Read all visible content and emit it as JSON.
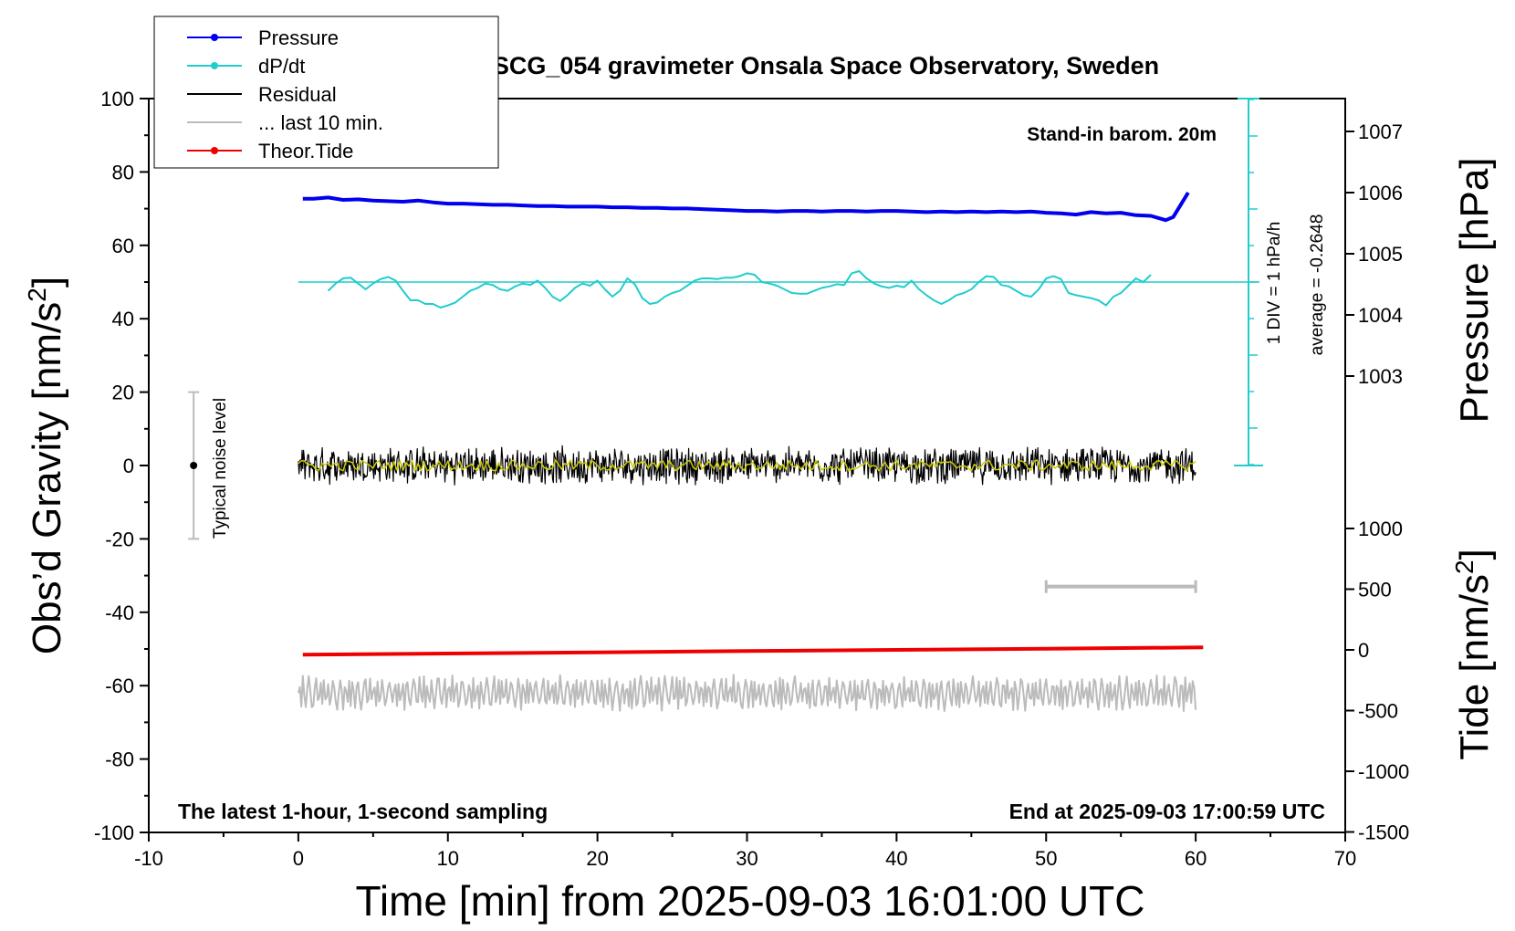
{
  "chart_data": {
    "type": "line",
    "title": "SCG_054 gravimeter Onsala Space Observatory, Sweden",
    "xlabel": "Time [min] from 2025-09-03 16:01:00 UTC",
    "ylabel_left": "Obs’d Gravity [nm/s",
    "ylabel_left_sup": "2",
    "ylabel_left_end": "]",
    "ylabel_right_pressure": "Pressure [hPa]",
    "ylabel_right_tide": "Tide [nm/s",
    "ylabel_right_tide_sup": "2",
    "ylabel_right_tide_end": "]",
    "xlim": [
      -10,
      70
    ],
    "ylim": [
      -100,
      100
    ],
    "x_ticks": [
      "-10",
      "0",
      "10",
      "20",
      "30",
      "40",
      "50",
      "60",
      "70"
    ],
    "y_ticks": [
      "-100",
      "-80",
      "-60",
      "-40",
      "-20",
      "0",
      "20",
      "40",
      "60",
      "80",
      "100"
    ],
    "pressure_ticks": [
      "1003",
      "1004",
      "1005",
      "1006",
      "1007"
    ],
    "tide_ticks": [
      "-1500",
      "-1000",
      "-500",
      "0",
      "500",
      "1000"
    ],
    "legend": {
      "position": "top-left",
      "entries": [
        {
          "label": "Pressure",
          "color": "#0000ee",
          "marker": true
        },
        {
          "label": "dP/dt",
          "color": "#22cccc",
          "marker": true
        },
        {
          "label": "Residual",
          "color": "#000000",
          "marker": false
        },
        {
          "label": "... last 10 min.",
          "color": "#bbbbbb",
          "marker": false
        },
        {
          "label": "Theor.Tide",
          "color": "#ee0000",
          "marker": true
        }
      ]
    },
    "annotations": {
      "stand_in": "Stand-in barom. 20m",
      "div_label": "1 DIV = 1 hPa/h",
      "average": "average = -0.2648",
      "noise_label": "Typical noise level",
      "bottom_left": "The latest 1-hour, 1-second sampling",
      "bottom_right": "End at 2025-09-03 17:00:59 UTC"
    },
    "noise_bar": {
      "x": -7,
      "y_center": 0,
      "y_range": [
        -20,
        20
      ]
    },
    "last10_bar": {
      "x_range": [
        50,
        60
      ],
      "y": -33
    },
    "series": [
      {
        "name": "Pressure",
        "color": "#0000ee",
        "units": "hPa",
        "x": [
          0.3,
          1,
          2,
          3,
          4,
          5,
          6,
          7,
          8,
          9,
          10,
          11,
          12,
          13,
          14,
          15,
          16,
          17,
          18,
          19,
          20,
          21,
          22,
          23,
          24,
          25,
          26,
          27,
          28,
          29,
          30,
          31,
          32,
          33,
          34,
          35,
          36,
          37,
          38,
          39,
          40,
          41,
          42,
          43,
          44,
          45,
          46,
          47,
          48,
          49,
          50,
          51,
          52,
          53,
          54,
          55,
          56,
          57,
          58,
          58.5,
          59,
          59.5
        ],
        "y": [
          1005.9,
          1005.9,
          1005.92,
          1005.88,
          1005.89,
          1005.87,
          1005.86,
          1005.85,
          1005.87,
          1005.84,
          1005.82,
          1005.82,
          1005.81,
          1005.8,
          1005.8,
          1005.79,
          1005.78,
          1005.78,
          1005.77,
          1005.77,
          1005.77,
          1005.76,
          1005.76,
          1005.75,
          1005.75,
          1005.74,
          1005.74,
          1005.73,
          1005.72,
          1005.71,
          1005.7,
          1005.7,
          1005.69,
          1005.7,
          1005.7,
          1005.69,
          1005.7,
          1005.7,
          1005.69,
          1005.7,
          1005.7,
          1005.69,
          1005.68,
          1005.69,
          1005.68,
          1005.69,
          1005.68,
          1005.69,
          1005.68,
          1005.69,
          1005.67,
          1005.66,
          1005.64,
          1005.68,
          1005.66,
          1005.67,
          1005.63,
          1005.62,
          1005.55,
          1005.6,
          1005.8,
          1006.0
        ]
      },
      {
        "name": "dP/dt",
        "color": "#22cccc",
        "units": "hPa/h (1 DIV = 1 hPa/h)",
        "x": [
          2,
          2.5,
          3,
          3.5,
          4,
          4.5,
          5,
          5.5,
          6,
          6.5,
          7,
          7.5,
          8,
          8.5,
          9,
          9.5,
          10,
          10.5,
          11,
          11.5,
          12,
          12.5,
          13,
          13.5,
          14,
          14.5,
          15,
          15.5,
          16,
          16.5,
          17,
          17.5,
          18,
          18.5,
          19,
          19.5,
          20,
          20.5,
          21,
          21.5,
          22,
          22.5,
          23,
          23.5,
          24,
          24.5,
          25,
          25.5,
          26,
          26.5,
          27,
          27.5,
          28,
          28.5,
          29,
          29.5,
          30,
          30.5,
          31,
          31.5,
          32,
          32.5,
          33,
          33.5,
          34,
          34.5,
          35,
          35.5,
          36,
          36.5,
          37,
          37.5,
          38,
          38.5,
          39,
          39.5,
          40,
          40.5,
          41,
          41.5,
          42,
          42.5,
          43,
          43.5,
          44,
          44.5,
          45,
          45.5,
          46,
          46.5,
          47,
          47.5,
          48,
          48.5,
          49,
          49.5,
          50,
          50.5,
          51,
          51.5,
          52,
          52.5,
          53,
          53.5,
          54,
          54.5,
          55,
          55.5,
          56,
          56.5,
          57
        ],
        "y": [
          -0.12,
          -0.02,
          0.05,
          0.06,
          -0.02,
          -0.1,
          -0.02,
          0.04,
          0.07,
          0.02,
          -0.12,
          -0.25,
          -0.25,
          -0.3,
          -0.3,
          -0.35,
          -0.32,
          -0.28,
          -0.2,
          -0.12,
          -0.08,
          -0.02,
          -0.04,
          -0.1,
          -0.12,
          -0.06,
          -0.02,
          -0.04,
          0.02,
          -0.08,
          -0.2,
          -0.26,
          -0.18,
          -0.08,
          -0.02,
          -0.05,
          0.02,
          -0.1,
          -0.2,
          -0.12,
          0.05,
          -0.03,
          -0.22,
          -0.3,
          -0.28,
          -0.2,
          -0.15,
          -0.12,
          -0.05,
          0.02,
          0.05,
          0.05,
          0.04,
          0.06,
          0.06,
          0.08,
          0.12,
          0.1,
          0.0,
          -0.02,
          -0.05,
          -0.1,
          -0.15,
          -0.16,
          -0.16,
          -0.12,
          -0.08,
          -0.06,
          -0.03,
          -0.04,
          0.12,
          0.15,
          0.05,
          -0.02,
          -0.06,
          -0.08,
          -0.05,
          -0.07,
          0.02,
          -0.1,
          -0.18,
          -0.25,
          -0.3,
          -0.25,
          -0.18,
          -0.15,
          -0.1,
          0.0,
          0.08,
          0.07,
          -0.04,
          -0.06,
          -0.12,
          -0.18,
          -0.2,
          -0.1,
          0.05,
          0.08,
          0.04,
          -0.15,
          -0.18,
          -0.2,
          -0.22,
          -0.25,
          -0.32,
          -0.2,
          -0.15,
          -0.05,
          0.05,
          0.0,
          0.1
        ],
        "zero_line": 0,
        "range_note": "average = -0.2648"
      },
      {
        "name": "Residual",
        "color": "#000000",
        "units": "nm/s2",
        "x_range": [
          0,
          60
        ],
        "mean": 0,
        "amplitude": 5,
        "note": "1-second sampling noise around 0"
      },
      {
        "name": "Residual smoothed",
        "color": "#cccc00",
        "x_range": [
          0,
          60
        ],
        "mean": 0,
        "amplitude": 1.5
      },
      {
        "name": "... last 10 min.",
        "color": "#bbbbbb",
        "units": "nm/s2",
        "x_range": [
          0,
          60
        ],
        "mean": -62,
        "amplitude": 5
      },
      {
        "name": "Theor.Tide",
        "color": "#ee0000",
        "units": "nm/s2 (tide axis)",
        "x": [
          0.3,
          10,
          20,
          30,
          40,
          50,
          60.5
        ],
        "y": [
          -40,
          -30,
          -20,
          -10,
          0,
          10,
          20
        ]
      }
    ]
  }
}
